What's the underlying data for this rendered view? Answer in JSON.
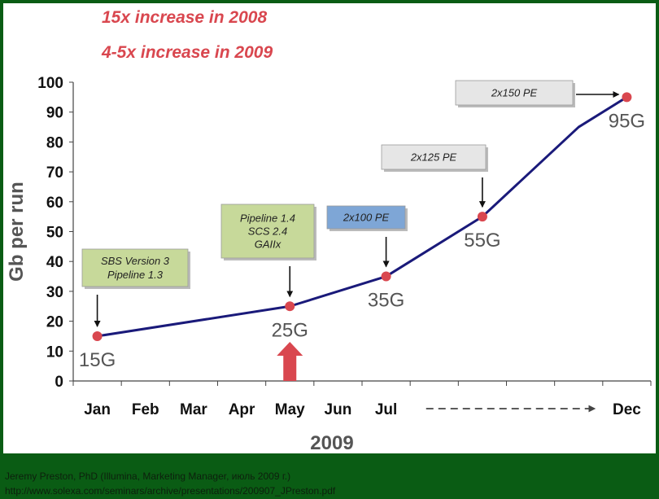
{
  "headlines": [
    "15x increase in 2008",
    "4-5x increase in 2009"
  ],
  "footer": {
    "line1": "Jeremy Preston, PhD (Illumina, Marketing Manager, июль 2009 г.)",
    "line2": "http://www.solexa.com/seminars/archive/presentations/200907_JPreston.pdf"
  },
  "colors": {
    "line": "#1a1a7a",
    "point": "#d9474f",
    "headline": "#d9474f",
    "big_arrow": "#d9474f",
    "box_green": "#c7d99a",
    "box_blue": "#7ea6d6",
    "box_gray": "#e6e6e6",
    "frame": "#0a5c14"
  },
  "chart_data": {
    "type": "line",
    "title": "",
    "ylabel": "Gb per run",
    "xlabel": "2009",
    "ylim": [
      0,
      100
    ],
    "yticks": [
      0,
      10,
      20,
      30,
      40,
      50,
      60,
      70,
      80,
      90,
      100
    ],
    "grid": false,
    "x_tick_labels": [
      "Jan",
      "Feb",
      "Mar",
      "Apr",
      "May",
      "Jun",
      "Jul",
      "Dec"
    ],
    "x_label_slots": [
      0,
      1,
      2,
      3,
      4,
      5,
      6,
      11
    ],
    "x_slots": 12,
    "x_range_arrow": [
      7,
      10
    ],
    "series": [
      {
        "name": "",
        "x": [
          0,
          4,
          6,
          8,
          10,
          11
        ],
        "values": [
          15,
          25,
          35,
          55,
          85,
          95
        ]
      }
    ],
    "points": [
      {
        "x": 0,
        "y": 15,
        "label": "15G"
      },
      {
        "x": 4,
        "y": 25,
        "label": "25G"
      },
      {
        "x": 6,
        "y": 35,
        "label": "35G"
      },
      {
        "x": 8,
        "y": 55,
        "label": "55G"
      },
      {
        "x": 11,
        "y": 95,
        "label": "95G"
      }
    ],
    "annotations": [
      {
        "lines": [
          "SBS Version 3",
          "Pipeline 1.3"
        ],
        "style": "green",
        "at": 0
      },
      {
        "lines": [
          "Pipeline 1.4",
          "SCS 2.4",
          "GAIIx"
        ],
        "style": "green",
        "at": 4
      },
      {
        "lines": [
          "2x100 PE"
        ],
        "style": "blue",
        "at": 6
      },
      {
        "lines": [
          "2x125 PE"
        ],
        "style": "gray",
        "at": 8
      },
      {
        "lines": [
          "2x150 PE"
        ],
        "style": "gray",
        "at": 11
      }
    ],
    "highlight_at": 4
  }
}
